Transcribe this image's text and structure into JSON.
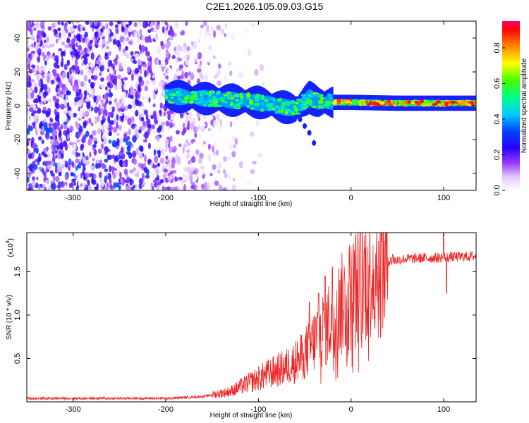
{
  "figure_title": "C2E1.2026.105.09.03.G15",
  "chart_data": [
    {
      "type": "heatmap",
      "title": "C2E1.2026.105.09.03.G15",
      "xlabel": "Height of straight line (km)",
      "ylabel": "Frequency (Hz)",
      "xlim": [
        -350,
        135
      ],
      "ylim": [
        -50,
        50
      ],
      "xticks": [
        -300,
        -200,
        -100,
        0,
        100
      ],
      "xtick_labels": [
        "-300",
        "-200",
        "-100",
        "0",
        "100"
      ],
      "yticks": [
        -40,
        -20,
        0,
        20,
        40
      ],
      "ytick_labels": [
        "-40",
        "-20",
        "0",
        "20",
        "40"
      ],
      "colorbar": {
        "label": "Normalized spectral amplitude",
        "range": [
          0,
          0.95
        ],
        "ticks": [
          0,
          0.2,
          0.4,
          0.6,
          0.8
        ],
        "tick_labels": [
          "0.0",
          "0.2",
          "0.4",
          "0.6",
          "0.8"
        ]
      },
      "signal_band": {
        "start_height": -200,
        "center_frequency": [
          [
            -200,
            6
          ],
          [
            -150,
            4
          ],
          [
            -120,
            3
          ],
          [
            -100,
            2
          ],
          [
            -80,
            0
          ],
          [
            -60,
            -2
          ],
          [
            -45,
            5
          ],
          [
            -35,
            2
          ],
          [
            -20,
            2
          ],
          [
            0,
            2
          ],
          [
            50,
            1.5
          ],
          [
            135,
            1.5
          ]
        ],
        "half_width": 3,
        "dispersion_tail": [
          [
            -55,
            -8
          ],
          [
            -50,
            -12
          ],
          [
            -45,
            -16
          ],
          [
            -40,
            -22
          ]
        ]
      },
      "noise_region": [
        -350,
        -130
      ]
    },
    {
      "type": "line",
      "xlabel": "Height of straight line (km)",
      "ylabel": "SNR (10 * v/v)",
      "multiplier_label": "(x10",
      "multiplier_exp": "4",
      "xlim": [
        -350,
        135
      ],
      "ylim": [
        0,
        1.95
      ],
      "xticks": [
        -300,
        -200,
        -100,
        0,
        100
      ],
      "xtick_labels": [
        "-300",
        "-200",
        "-100",
        "0",
        "100"
      ],
      "yticks": [
        0.5,
        1.0,
        1.5
      ],
      "ytick_labels": [
        "0.5",
        "1.0",
        "1.5"
      ],
      "series": [
        {
          "name": "SNR",
          "color": "#ee2222",
          "envelope": [
            [
              -350,
              0.04
            ],
            [
              -200,
              0.04
            ],
            [
              -160,
              0.06
            ],
            [
              -130,
              0.12
            ],
            [
              -110,
              0.22
            ],
            [
              -90,
              0.32
            ],
            [
              -70,
              0.4
            ],
            [
              -55,
              0.5
            ],
            [
              -45,
              0.62
            ],
            [
              -35,
              0.78
            ],
            [
              -25,
              0.9
            ],
            [
              -15,
              1.05
            ],
            [
              -5,
              1.18
            ],
            [
              5,
              1.3
            ],
            [
              15,
              1.45
            ],
            [
              25,
              1.55
            ],
            [
              40,
              1.62
            ],
            [
              60,
              1.65
            ],
            [
              90,
              1.66
            ],
            [
              135,
              1.68
            ]
          ],
          "spikes": [
            [
              -45,
              1.15
            ],
            [
              -35,
              1.25
            ],
            [
              -28,
              1.45
            ],
            [
              -20,
              1.55
            ],
            [
              -12,
              1.4
            ],
            [
              30,
              1.85
            ],
            [
              45,
              1.7
            ],
            [
              100,
              1.95
            ],
            [
              103,
              1.25
            ]
          ]
        }
      ]
    }
  ],
  "colors": {
    "signal_line": "#ee2222",
    "colormap": [
      "#ffffff",
      "#cc88ff",
      "#6a00ff",
      "#0000ff",
      "#00ccff",
      "#00ff66",
      "#ffff00",
      "#ff8800",
      "#ff0000",
      "#ff00aa"
    ]
  }
}
